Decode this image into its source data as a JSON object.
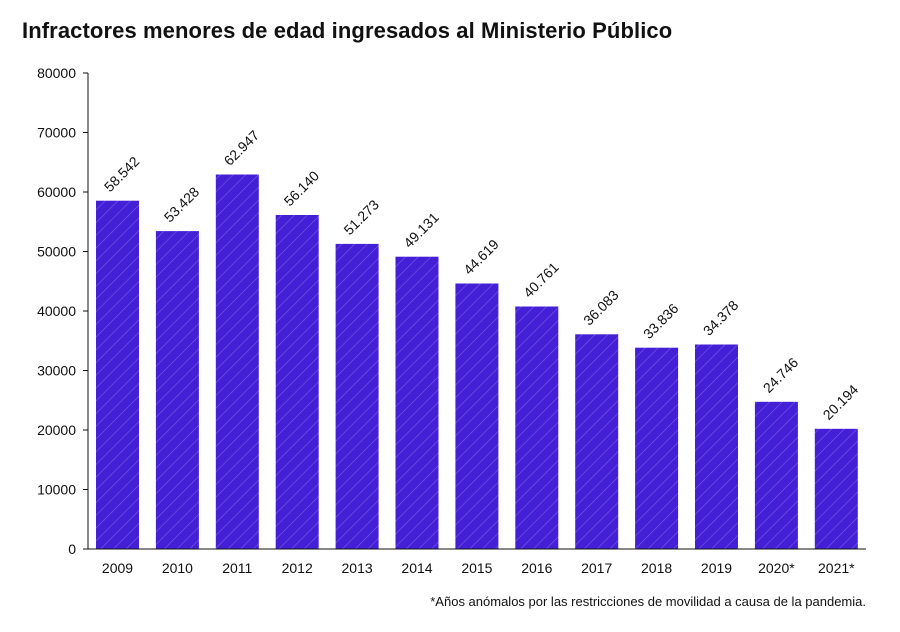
{
  "chart_data": {
    "type": "bar",
    "title": "Infractores menores de edad ingresados al Ministerio Público",
    "categories": [
      "2009",
      "2010",
      "2011",
      "2012",
      "2013",
      "2014",
      "2015",
      "2016",
      "2017",
      "2018",
      "2019",
      "2020*",
      "2021*"
    ],
    "values": [
      58542,
      53428,
      62947,
      56140,
      51273,
      49131,
      44619,
      40761,
      36083,
      33836,
      34378,
      24746,
      20194
    ],
    "value_labels": [
      "58.542",
      "53.428",
      "62.947",
      "56.140",
      "51.273",
      "49.131",
      "44.619",
      "40.761",
      "36.083",
      "33.836",
      "34.378",
      "24.746",
      "20.194"
    ],
    "y_ticks": [
      0,
      10000,
      20000,
      30000,
      40000,
      50000,
      60000,
      70000,
      80000
    ],
    "ylim": [
      0,
      80000
    ],
    "grid": false,
    "bar_color": "#4320d6",
    "hatch_color": "#7a5ce8",
    "footnote": "*Años anómalos por las restricciones de movilidad a causa de la pandemia."
  }
}
